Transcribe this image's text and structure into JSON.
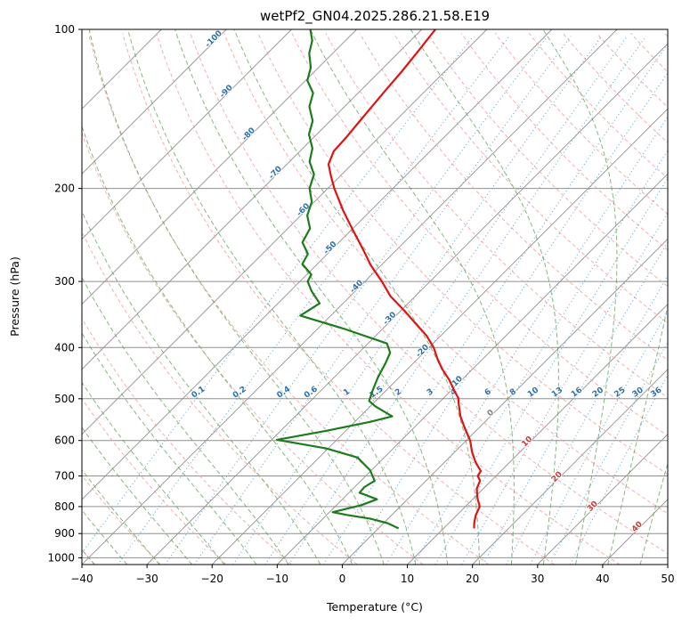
{
  "title": "wetPf2_GN04.2025.286.21.58.E19",
  "chart_data": {
    "type": "skewt-log-p",
    "title": "wetPf2_GN04.2025.286.21.58.E19",
    "xlabel": "Temperature (°C)",
    "ylabel": "Pressure (hPa)",
    "xlim": [
      -40,
      50
    ],
    "plim": [
      100,
      1030
    ],
    "skew_deg": 45,
    "grid_on": true,
    "legend": "none",
    "x_ticks": [
      -40,
      -30,
      -20,
      -10,
      0,
      10,
      20,
      30,
      40,
      50
    ],
    "p_ticks": [
      100,
      200,
      300,
      400,
      500,
      600,
      700,
      800,
      900,
      1000
    ],
    "grid": {
      "isobar_color": "#8f8f8f",
      "isotherm_color": "#909090"
    },
    "isotherms": {
      "min": -110,
      "max": 50,
      "step": 10,
      "labels": [
        {
          "v": -100,
          "p": 105
        },
        {
          "v": -90,
          "p": 132
        },
        {
          "v": -80,
          "p": 159
        },
        {
          "v": -70,
          "p": 188
        },
        {
          "v": -60,
          "p": 221
        },
        {
          "v": -50,
          "p": 261
        },
        {
          "v": -40,
          "p": 309
        },
        {
          "v": -30,
          "p": 355
        },
        {
          "v": -20,
          "p": 409
        },
        {
          "v": -10,
          "p": 469
        },
        {
          "v": 0,
          "p": 536
        },
        {
          "v": 10,
          "p": 607
        },
        {
          "v": 20,
          "p": 708
        },
        {
          "v": 30,
          "p": 805
        },
        {
          "v": 40,
          "p": 880
        }
      ],
      "label_colors": {
        "negative": "#2e6fad",
        "zero": "#808080",
        "positive": "#c53a3a"
      }
    },
    "dry_adiabats": {
      "min": -40,
      "max": 350,
      "step": 10,
      "color": "#f0a0a0"
    },
    "moist_adiabats": {
      "values": [
        -40,
        -35,
        -30,
        -25,
        -20,
        -15,
        -10,
        -5,
        0,
        5,
        10,
        15,
        20,
        25,
        30,
        35,
        40,
        45
      ],
      "color": "#5f9e54"
    },
    "mixing_ratio": {
      "values": [
        0.1,
        0.2,
        0.4,
        0.6,
        1,
        1.5,
        2,
        3,
        4,
        6,
        8,
        10,
        13,
        16,
        20,
        25,
        30,
        36
      ],
      "label_pressure": 490,
      "line_color": "#6aa3cc",
      "label_color": "#2e6fad"
    },
    "series": [
      {
        "name": "temperature",
        "color": "#e01212",
        "points": [
          [
            880,
            14.7
          ],
          [
            860,
            13.9
          ],
          [
            830,
            12.9
          ],
          [
            800,
            12.2
          ],
          [
            770,
            10.5
          ],
          [
            740,
            9.0
          ],
          [
            715,
            8.3
          ],
          [
            700,
            7.2
          ],
          [
            685,
            6.9
          ],
          [
            660,
            4.8
          ],
          [
            630,
            2.6
          ],
          [
            600,
            0.6
          ],
          [
            570,
            -2.0
          ],
          [
            540,
            -4.6
          ],
          [
            510,
            -6.9
          ],
          [
            500,
            -7.6
          ],
          [
            480,
            -9.8
          ],
          [
            460,
            -12.0
          ],
          [
            440,
            -14.6
          ],
          [
            420,
            -17.0
          ],
          [
            400,
            -19.3
          ],
          [
            380,
            -22.2
          ],
          [
            360,
            -25.8
          ],
          [
            340,
            -29.6
          ],
          [
            320,
            -33.8
          ],
          [
            300,
            -37.4
          ],
          [
            280,
            -41.5
          ],
          [
            260,
            -45.4
          ],
          [
            240,
            -49.7
          ],
          [
            220,
            -54.3
          ],
          [
            200,
            -59.0
          ],
          [
            190,
            -61.3
          ],
          [
            180,
            -63.6
          ],
          [
            170,
            -64.8
          ],
          [
            160,
            -65.0
          ],
          [
            150,
            -65.4
          ],
          [
            140,
            -65.8
          ],
          [
            130,
            -66.2
          ],
          [
            120,
            -66.6
          ],
          [
            110,
            -67.2
          ],
          [
            100,
            -67.9
          ]
        ]
      },
      {
        "name": "dewpoint",
        "color": "#1c7c1c",
        "points": [
          [
            880,
            3.1
          ],
          [
            860,
            0.6
          ],
          [
            843,
            -2.8
          ],
          [
            830,
            -6.8
          ],
          [
            820,
            -9.5
          ],
          [
            795,
            -6.2
          ],
          [
            775,
            -4.7
          ],
          [
            753,
            -8.4
          ],
          [
            735,
            -8.5
          ],
          [
            715,
            -7.9
          ],
          [
            683,
            -10.2
          ],
          [
            646,
            -14.1
          ],
          [
            621,
            -20.3
          ],
          [
            598,
            -29.2
          ],
          [
            575,
            -23.0
          ],
          [
            553,
            -17.6
          ],
          [
            540,
            -15.1
          ],
          [
            517,
            -19.2
          ],
          [
            505,
            -21.0
          ],
          [
            482,
            -22.1
          ],
          [
            455,
            -23.3
          ],
          [
            428,
            -24.3
          ],
          [
            409,
            -25.2
          ],
          [
            393,
            -27.1
          ],
          [
            369,
            -35.8
          ],
          [
            348,
            -44.7
          ],
          [
            330,
            -43.6
          ],
          [
            313,
            -46.7
          ],
          [
            300,
            -48.8
          ],
          [
            291,
            -49.3
          ],
          [
            278,
            -52.3
          ],
          [
            266,
            -53.0
          ],
          [
            253,
            -55.6
          ],
          [
            238,
            -56.6
          ],
          [
            225,
            -59.0
          ],
          [
            212,
            -60.4
          ],
          [
            200,
            -62.8
          ],
          [
            188,
            -64.3
          ],
          [
            178,
            -66.9
          ],
          [
            168,
            -68.5
          ],
          [
            158,
            -71.2
          ],
          [
            149,
            -72.7
          ],
          [
            140,
            -75.4
          ],
          [
            132,
            -76.9
          ],
          [
            125,
            -79.7
          ],
          [
            118,
            -81.2
          ],
          [
            111,
            -83.6
          ],
          [
            105,
            -85.1
          ],
          [
            100,
            -87.1
          ]
        ]
      }
    ]
  }
}
